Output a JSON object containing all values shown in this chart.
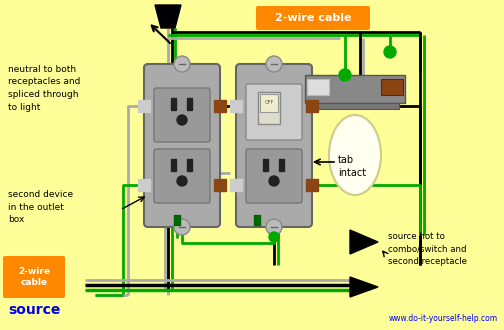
{
  "bg_color": "#FFFF99",
  "watermark": "www.do-it-yourself-help.com",
  "label_2wire_top": "2-wire cable",
  "label_2wire_bottom": "2-wire\ncable",
  "label_source": "source",
  "label_neutral": "neutral to both\nreceptacles and\nspliced through\nto light",
  "label_second": "second device\nin the outlet\nbox",
  "label_tab": "tab\nintact",
  "label_source_hot": "source hot to\ncombo/switch and\nsecond receptacle",
  "blue_label_color": "#0000EE",
  "wire_black": "#000000",
  "wire_white": "#AAAAAA",
  "wire_green": "#00AA00",
  "outlet_fill": "#AAAAAA",
  "outlet_border": "#666666",
  "orange_bg": "#FF8800",
  "white_text": "#FFFFFF",
  "brown": "#8B4513",
  "ceiling_gray": "#888888",
  "ceiling_gray2": "#777777",
  "bulb_color": "#FFFFF0",
  "screw_color": "#CCCCCC"
}
